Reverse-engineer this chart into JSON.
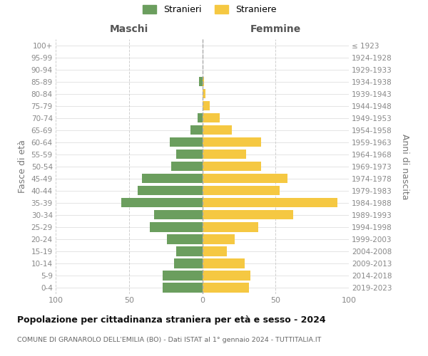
{
  "age_groups": [
    "0-4",
    "5-9",
    "10-14",
    "15-19",
    "20-24",
    "25-29",
    "30-34",
    "35-39",
    "40-44",
    "45-49",
    "50-54",
    "55-59",
    "60-64",
    "65-69",
    "70-74",
    "75-79",
    "80-84",
    "85-89",
    "90-94",
    "95-99",
    "100+"
  ],
  "birth_years": [
    "2019-2023",
    "2014-2018",
    "2009-2013",
    "2004-2008",
    "1999-2003",
    "1994-1998",
    "1989-1993",
    "1984-1988",
    "1979-1983",
    "1974-1978",
    "1969-1973",
    "1964-1968",
    "1959-1963",
    "1954-1958",
    "1949-1953",
    "1944-1948",
    "1939-1943",
    "1934-1938",
    "1929-1933",
    "1924-1928",
    "≤ 1923"
  ],
  "maschi": [
    27,
    27,
    19,
    18,
    24,
    36,
    33,
    55,
    44,
    41,
    21,
    18,
    22,
    8,
    3,
    0,
    0,
    2,
    0,
    0,
    0
  ],
  "femmine": [
    32,
    33,
    29,
    17,
    22,
    38,
    62,
    92,
    53,
    58,
    40,
    30,
    40,
    20,
    12,
    5,
    2,
    1,
    0,
    0,
    0
  ],
  "maschi_color": "#6b9e5e",
  "femmine_color": "#f5c842",
  "background_color": "#ffffff",
  "grid_color": "#d0d0d0",
  "title": "Popolazione per cittadinanza straniera per età e sesso - 2024",
  "subtitle": "COMUNE DI GRANAROLO DELL'EMILIA (BO) - Dati ISTAT al 1° gennaio 2024 - TUTTITALIA.IT",
  "ylabel_left": "Fasce di età",
  "ylabel_right": "Anni di nascita",
  "xlabel_left": "Maschi",
  "xlabel_right": "Femmine",
  "legend_maschi": "Stranieri",
  "legend_femmine": "Straniere",
  "xlim": 100
}
